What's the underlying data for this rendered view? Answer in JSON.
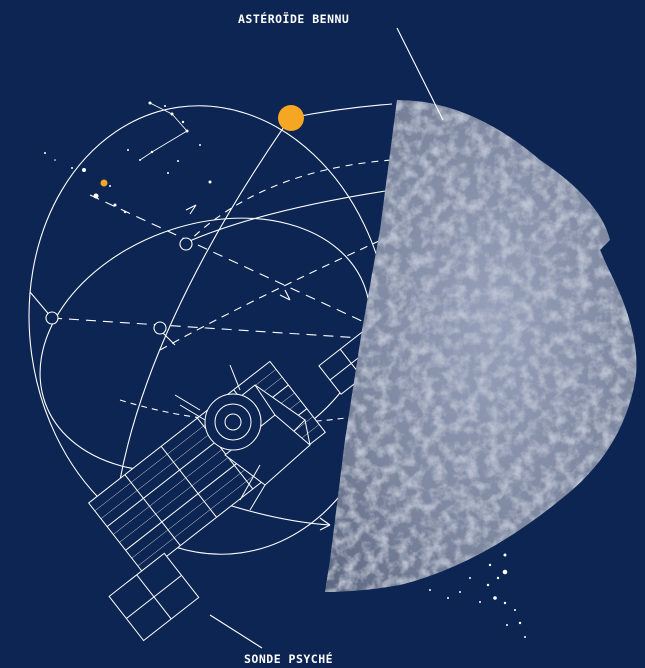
{
  "labels": {
    "asteroid": "ASTÉROÏDE BENNU",
    "probe": "SONDE PSYCHÉ"
  },
  "colors": {
    "background": "#0c2552",
    "line": "#ffffff",
    "sun": "#f5a623",
    "asteroid": "#7d879f"
  },
  "icons": {
    "sun": "sun-dot",
    "asteroid": "asteroid-image",
    "probe": "spacecraft-line-drawing"
  }
}
